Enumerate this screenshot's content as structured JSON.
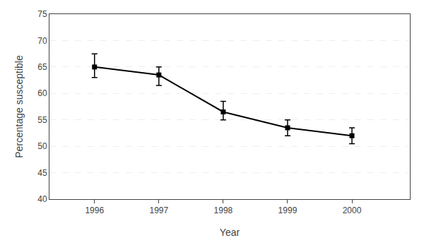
{
  "chart_data": {
    "type": "line",
    "x": [
      1996,
      1997,
      1998,
      1999,
      2000
    ],
    "values": [
      65.0,
      63.5,
      56.5,
      53.5,
      52.0
    ],
    "yerr_upper": [
      2.5,
      1.5,
      2.0,
      1.5,
      1.5
    ],
    "yerr_lower": [
      2.0,
      2.0,
      1.5,
      1.5,
      1.5
    ],
    "xlabel": "Year",
    "ylabel": "Percentage susceptible",
    "xlim": [
      1995.3,
      2000.9
    ],
    "xticks": [
      1996,
      1997,
      1998,
      1999,
      2000
    ],
    "ylim": [
      40,
      75
    ],
    "yticks": [
      40,
      45,
      50,
      55,
      60,
      65,
      70,
      75
    ],
    "color": "#000000",
    "marker": "square",
    "grid": "y"
  }
}
